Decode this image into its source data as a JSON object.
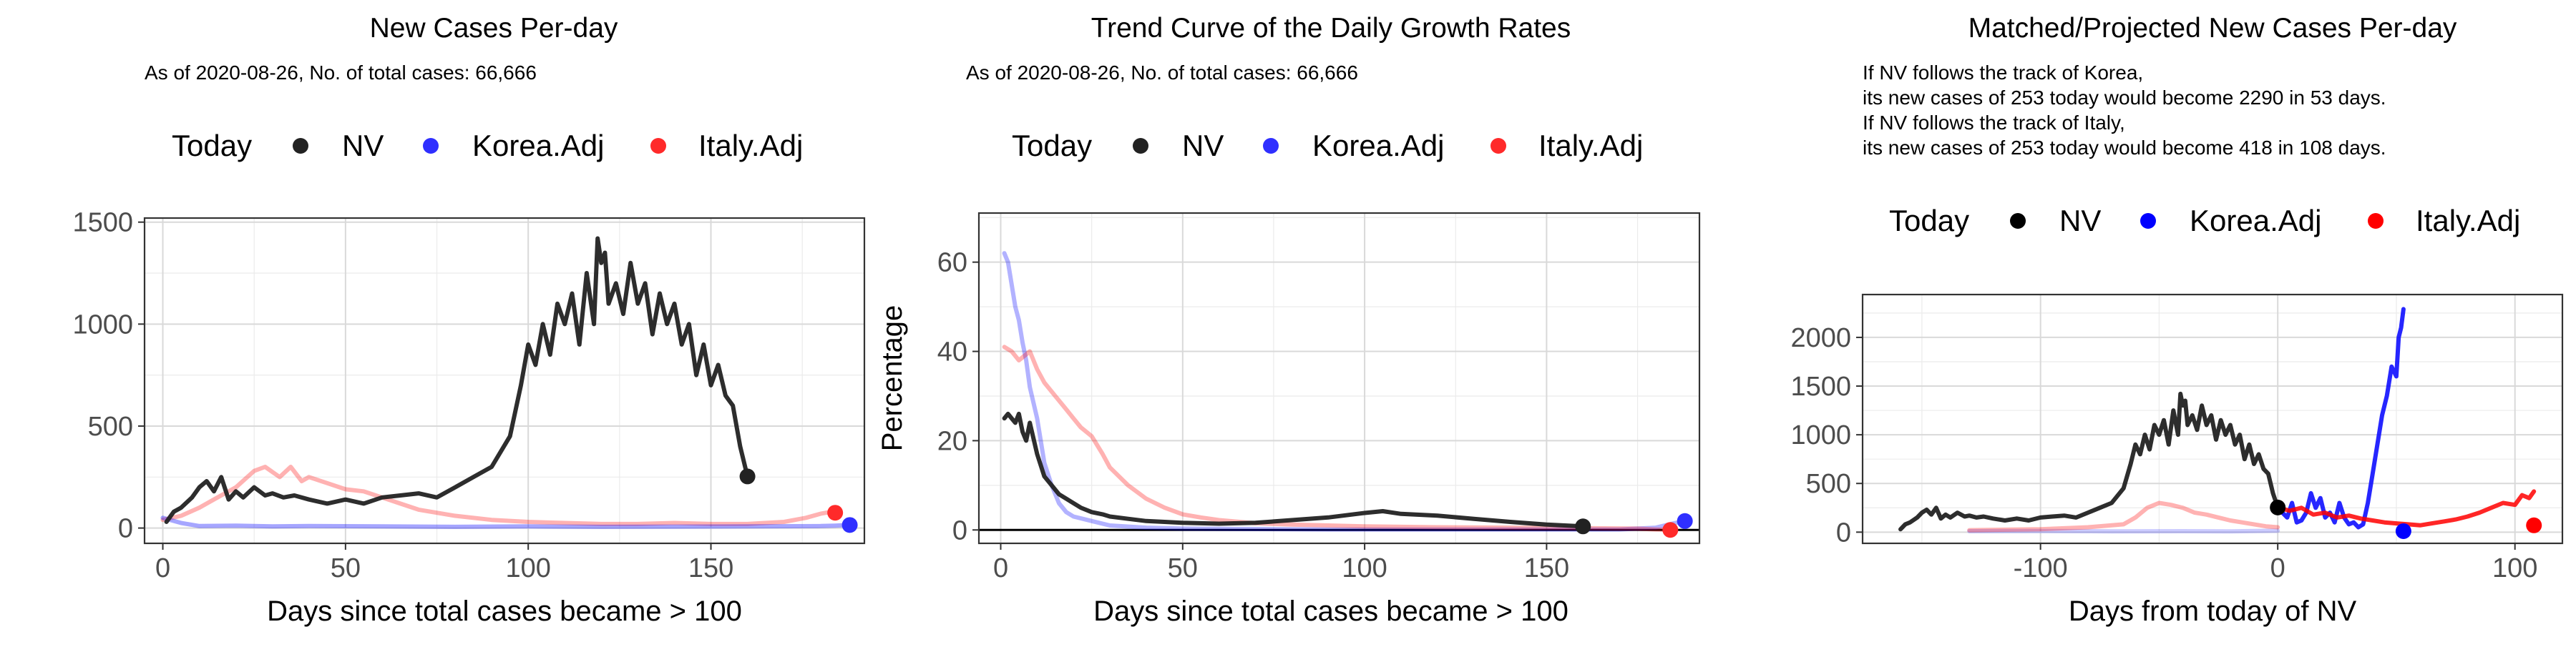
{
  "chart_data": [
    {
      "type": "line",
      "title": "New Cases Per-day",
      "subtitle_lines": [
        "As of 2020-08-26, No. of total cases: 66,666"
      ],
      "legend": {
        "title": "Today",
        "entries": [
          "NV",
          "Korea.Adj",
          "Italy.Adj"
        ],
        "placement": "top"
      },
      "xlabel": "Days since total cases became > 100",
      "ylabel": "",
      "xlim": [
        -5,
        192
      ],
      "ylim": [
        -75,
        1520
      ],
      "xticks": [
        0,
        50,
        100,
        150
      ],
      "yticks": [
        0,
        500,
        1000,
        1500
      ],
      "grid": true,
      "series": [
        {
          "name": "NV",
          "color": "#222222",
          "opacity": 0.95,
          "x": [
            1,
            3,
            5,
            8,
            10,
            12,
            14,
            16,
            18,
            20,
            22,
            25,
            28,
            30,
            33,
            36,
            40,
            45,
            50,
            55,
            60,
            65,
            70,
            75,
            80,
            85,
            90,
            95,
            98,
            100,
            102,
            104,
            106,
            108,
            110,
            112,
            114,
            116,
            118,
            119,
            120,
            121,
            122,
            124,
            126,
            128,
            130,
            132,
            134,
            136,
            138,
            140,
            142,
            144,
            146,
            148,
            150,
            152,
            154,
            156,
            158,
            160
          ],
          "y": [
            30,
            80,
            100,
            150,
            200,
            230,
            180,
            250,
            140,
            180,
            150,
            200,
            160,
            170,
            150,
            160,
            140,
            120,
            140,
            120,
            150,
            160,
            170,
            150,
            200,
            250,
            300,
            450,
            700,
            900,
            800,
            1000,
            850,
            1100,
            1000,
            1150,
            900,
            1250,
            1000,
            1420,
            1300,
            1350,
            1100,
            1200,
            1050,
            1300,
            1100,
            1200,
            950,
            1150,
            1000,
            1100,
            900,
            1000,
            750,
            900,
            700,
            800,
            650,
            600,
            400,
            253
          ]
        },
        {
          "name": "Korea.Adj",
          "color": "#0000ff",
          "opacity": 0.35,
          "x": [
            0,
            5,
            10,
            20,
            30,
            40,
            60,
            80,
            100,
            120,
            140,
            160,
            180,
            184,
            188
          ],
          "y": [
            50,
            25,
            10,
            12,
            8,
            10,
            8,
            6,
            8,
            6,
            7,
            8,
            10,
            12,
            15
          ]
        },
        {
          "name": "Italy.Adj",
          "color": "#ff0000",
          "opacity": 0.3,
          "x": [
            0,
            5,
            10,
            15,
            20,
            25,
            28,
            32,
            35,
            38,
            40,
            45,
            50,
            55,
            60,
            65,
            70,
            80,
            90,
            100,
            110,
            120,
            130,
            140,
            150,
            160,
            170,
            176,
            180,
            183,
            185
          ],
          "y": [
            40,
            60,
            100,
            150,
            200,
            280,
            300,
            250,
            300,
            230,
            250,
            220,
            190,
            180,
            150,
            120,
            90,
            60,
            40,
            30,
            25,
            20,
            20,
            25,
            20,
            20,
            30,
            50,
            70,
            80,
            75
          ]
        }
      ],
      "today_points": [
        {
          "name": "NV",
          "x": 160,
          "y": 253,
          "color": "#222222"
        },
        {
          "name": "Korea.Adj",
          "x": 188,
          "y": 15,
          "color": "#2f2fff"
        },
        {
          "name": "Italy.Adj",
          "x": 184,
          "y": 75,
          "color": "#ff2a2a"
        }
      ]
    },
    {
      "type": "line",
      "title": "Trend Curve of the Daily Growth Rates",
      "subtitle_lines": [
        "As of 2020-08-26, No. of total cases: 66,666"
      ],
      "legend": {
        "title": "Today",
        "entries": [
          "NV",
          "Korea.Adj",
          "Italy.Adj"
        ],
        "placement": "top"
      },
      "xlabel": "Days since total cases became > 100",
      "ylabel": "Percentage",
      "xlim": [
        -6,
        192
      ],
      "ylim": [
        -3,
        71
      ],
      "xticks": [
        0,
        50,
        100,
        150
      ],
      "yticks": [
        0,
        20,
        40,
        60
      ],
      "grid": true,
      "hline": 0,
      "series": [
        {
          "name": "NV",
          "color": "#222222",
          "opacity": 0.95,
          "x": [
            1,
            2,
            3,
            4,
            5,
            6,
            7,
            8,
            10,
            12,
            14,
            16,
            18,
            20,
            22,
            25,
            28,
            30,
            35,
            40,
            45,
            50,
            60,
            70,
            80,
            90,
            100,
            105,
            110,
            120,
            130,
            140,
            150,
            155,
            160
          ],
          "y": [
            25,
            26,
            25,
            24,
            26,
            22,
            20,
            24,
            17,
            12,
            10,
            8,
            7,
            6,
            5,
            4,
            3.5,
            3,
            2.5,
            2,
            1.8,
            1.6,
            1.4,
            1.6,
            2.2,
            2.8,
            3.8,
            4.2,
            3.6,
            3.2,
            2.5,
            1.8,
            1.2,
            1.0,
            0.8
          ]
        },
        {
          "name": "Korea.Adj",
          "color": "#0000ff",
          "opacity": 0.3,
          "x": [
            1,
            2,
            3,
            4,
            5,
            6,
            7,
            8,
            10,
            12,
            14,
            16,
            18,
            20,
            25,
            30,
            40,
            50,
            70,
            90,
            110,
            130,
            150,
            170,
            180,
            185,
            188
          ],
          "y": [
            62,
            60,
            55,
            50,
            47,
            42,
            38,
            32,
            25,
            15,
            10,
            6,
            4,
            3,
            2,
            1,
            0.5,
            0.3,
            0.2,
            0.1,
            0.1,
            0.1,
            0.1,
            0.1,
            0.5,
            1.5,
            2
          ]
        },
        {
          "name": "Italy.Adj",
          "color": "#ff0000",
          "opacity": 0.3,
          "x": [
            1,
            3,
            5,
            8,
            10,
            12,
            15,
            18,
            20,
            22,
            25,
            28,
            30,
            35,
            40,
            45,
            50,
            55,
            60,
            70,
            80,
            90,
            100,
            120,
            140,
            160,
            175,
            180,
            184
          ],
          "y": [
            41,
            40,
            38,
            40,
            36,
            33,
            30,
            27,
            25,
            23,
            21,
            17,
            14,
            10,
            7,
            5,
            3.5,
            2.8,
            2.2,
            1.5,
            1.2,
            1,
            0.8,
            0.6,
            0.5,
            0.4,
            0.3,
            0.1,
            0
          ]
        }
      ],
      "today_points": [
        {
          "name": "NV",
          "x": 160,
          "y": 0.8,
          "color": "#222222"
        },
        {
          "name": "Korea.Adj",
          "x": 188,
          "y": 2,
          "color": "#2f2fff"
        },
        {
          "name": "Italy.Adj",
          "x": 184,
          "y": 0,
          "color": "#ff2a2a"
        }
      ]
    },
    {
      "type": "line",
      "title": "Matched/Projected New Cases Per-day",
      "subtitle_lines": [
        "If NV follows the track of Korea,",
        "its new cases of 253 today would become 2290 in 53 days.",
        "If NV follows the track of Italy,",
        "its new cases of 253 today would become 418 in 108 days."
      ],
      "legend": {
        "title": "Today",
        "entries": [
          "NV",
          "Korea.Adj",
          "Italy.Adj"
        ],
        "placement": "top"
      },
      "xlabel": "Days from today of NV",
      "ylabel": "",
      "xlim": [
        -175,
        120
      ],
      "ylim": [
        -115,
        2440
      ],
      "xticks": [
        -100,
        0,
        100
      ],
      "yticks": [
        0,
        500,
        1000,
        1500,
        2000
      ],
      "grid": true,
      "series": [
        {
          "name": "NV",
          "color": "#222222",
          "opacity": 0.95,
          "x": [
            -159,
            -157,
            -155,
            -152,
            -150,
            -148,
            -146,
            -144,
            -142,
            -140,
            -138,
            -135,
            -132,
            -130,
            -127,
            -124,
            -120,
            -115,
            -110,
            -105,
            -100,
            -95,
            -90,
            -85,
            -80,
            -75,
            -70,
            -65,
            -62,
            -60,
            -58,
            -56,
            -54,
            -52,
            -50,
            -48,
            -46,
            -44,
            -42,
            -41,
            -40,
            -39,
            -38,
            -36,
            -34,
            -32,
            -30,
            -28,
            -26,
            -24,
            -22,
            -20,
            -18,
            -16,
            -14,
            -12,
            -10,
            -8,
            -6,
            -4,
            -2,
            0
          ],
          "y": [
            30,
            80,
            100,
            150,
            200,
            230,
            180,
            250,
            140,
            180,
            150,
            200,
            160,
            170,
            150,
            160,
            140,
            120,
            140,
            120,
            150,
            160,
            170,
            150,
            200,
            250,
            300,
            450,
            700,
            900,
            800,
            1000,
            850,
            1100,
            1000,
            1150,
            900,
            1250,
            1000,
            1420,
            1300,
            1350,
            1100,
            1200,
            1050,
            1300,
            1100,
            1200,
            950,
            1150,
            1000,
            1100,
            900,
            1000,
            750,
            900,
            700,
            800,
            650,
            600,
            400,
            253
          ]
        },
        {
          "name": "Korea.Adj",
          "color": "#0000ff",
          "opacity": 0.85,
          "x": [
            0,
            2,
            4,
            6,
            8,
            10,
            12,
            14,
            16,
            18,
            20,
            22,
            24,
            26,
            28,
            30,
            32,
            34,
            36,
            38,
            40,
            42,
            44,
            46,
            48,
            50,
            51,
            52,
            53
          ],
          "y": [
            253,
            200,
            150,
            300,
            100,
            120,
            200,
            400,
            250,
            350,
            150,
            200,
            100,
            300,
            150,
            80,
            100,
            50,
            80,
            300,
            600,
            900,
            1200,
            1400,
            1700,
            1600,
            2000,
            2100,
            2290
          ]
        },
        {
          "name": "Korea.Adj (past)",
          "color": "#0000ff",
          "opacity": 0.2,
          "x": [
            -130,
            -100,
            -70,
            -40,
            -20,
            0
          ],
          "y": [
            10,
            12,
            8,
            10,
            8,
            15
          ]
        },
        {
          "name": "Italy.Adj",
          "color": "#ff0000",
          "opacity": 0.85,
          "x": [
            0,
            5,
            10,
            15,
            20,
            25,
            30,
            35,
            40,
            45,
            50,
            55,
            60,
            65,
            70,
            75,
            80,
            85,
            90,
            95,
            100,
            103,
            106,
            108
          ],
          "y": [
            253,
            220,
            250,
            180,
            200,
            150,
            170,
            140,
            120,
            100,
            90,
            80,
            70,
            90,
            110,
            130,
            160,
            200,
            250,
            300,
            280,
            380,
            350,
            418
          ]
        },
        {
          "name": "Italy.Adj (past)",
          "color": "#ff0000",
          "opacity": 0.3,
          "x": [
            -130,
            -100,
            -80,
            -65,
            -60,
            -55,
            -50,
            -45,
            -40,
            -35,
            -30,
            -25,
            -20,
            -15,
            -10,
            -5,
            0
          ],
          "y": [
            20,
            30,
            50,
            80,
            150,
            250,
            300,
            280,
            250,
            200,
            180,
            150,
            120,
            100,
            80,
            60,
            50
          ]
        }
      ],
      "today_points": [
        {
          "name": "NV",
          "x": 0,
          "y": 253,
          "color": "#000000"
        },
        {
          "name": "Korea.Adj",
          "x": 53,
          "y": 10,
          "color": "#0000ff"
        },
        {
          "name": "Italy.Adj",
          "x": 108,
          "y": 70,
          "color": "#ff0000"
        }
      ]
    }
  ]
}
